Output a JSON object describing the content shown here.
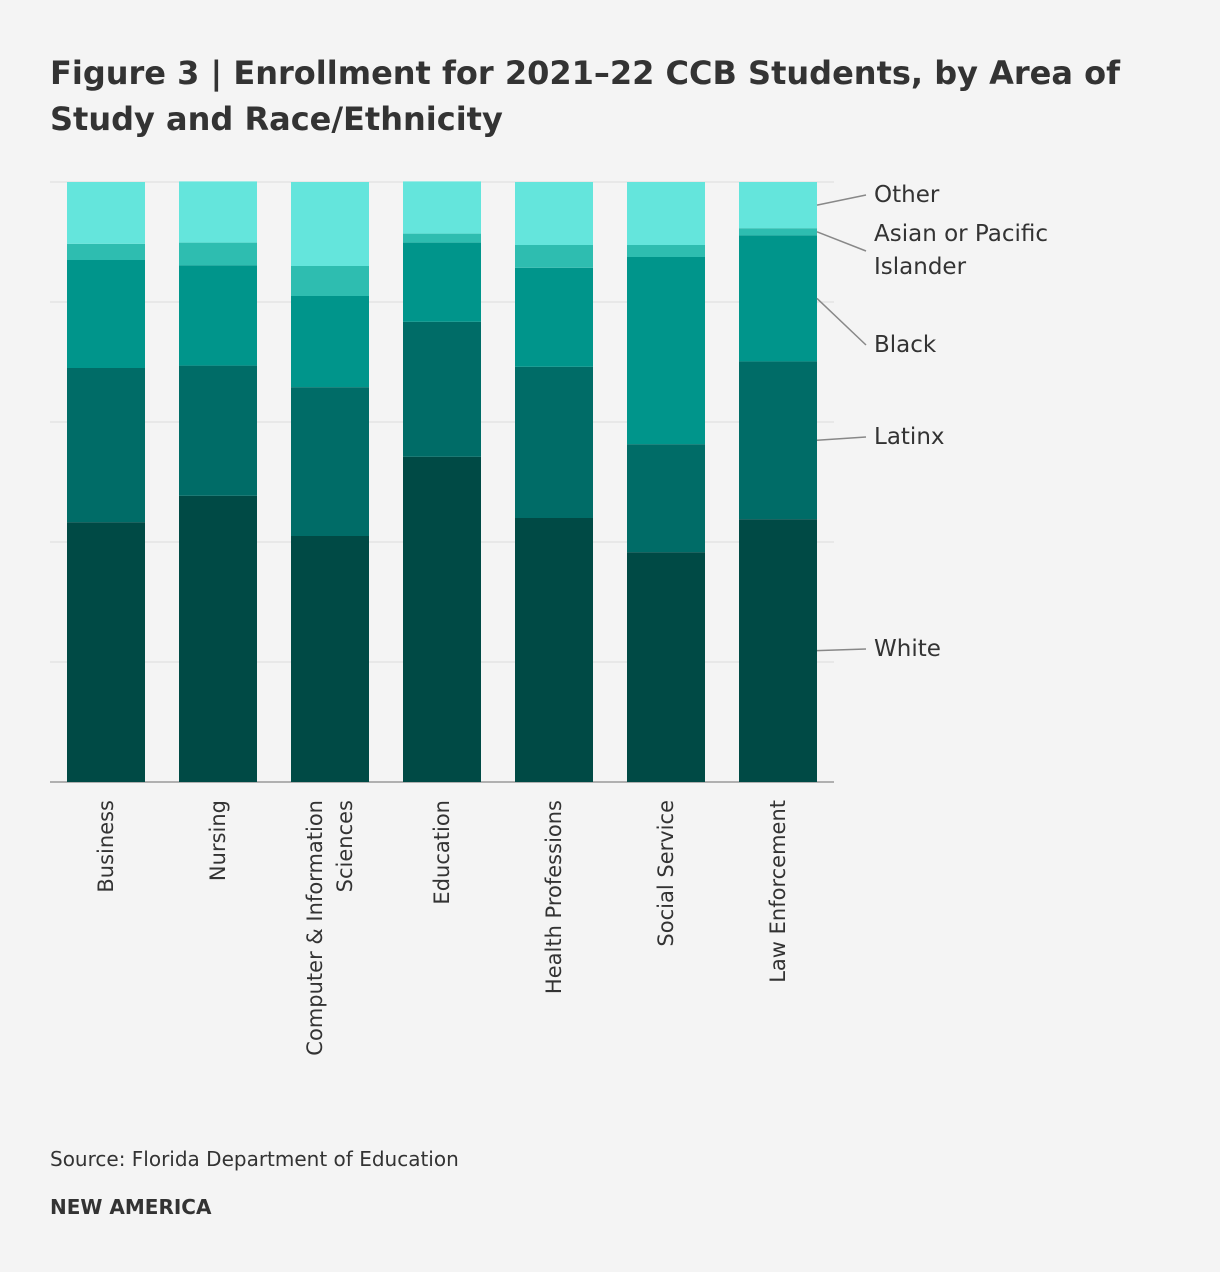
{
  "chart_data": {
    "type": "stacked_bar",
    "title": "Figure 3 | Enrollment for 2021–22 CCB Students, by Area of Study and Race/Ethnicity",
    "categories": [
      "Business",
      "Nursing",
      "Computer & Information Sciences",
      "Education",
      "Health Professions",
      "Social Service",
      "Law Enforcement"
    ],
    "series": [
      {
        "name": "White",
        "color": "#004a45",
        "values": [
          43.3,
          47.7,
          41,
          54.2,
          44,
          38.3,
          43.8
        ]
      },
      {
        "name": "Latinx",
        "color": "#006c67",
        "values": [
          25.7,
          21.7,
          24.8,
          22.5,
          25.2,
          18,
          26.3
        ]
      },
      {
        "name": "Black",
        "color": "#00958b",
        "values": [
          18,
          16.7,
          15.2,
          13.2,
          16.5,
          31.2,
          21
        ]
      },
      {
        "name": "Asian or Pacific Islander",
        "color": "#2ebdb0",
        "values": [
          2.7,
          3.8,
          5,
          1.5,
          3.8,
          2,
          1.2
        ]
      },
      {
        "name": "Other",
        "color": "#64e5dc",
        "values": [
          10.3,
          10.2,
          14,
          8.7,
          10.5,
          10.5,
          7.7
        ]
      }
    ],
    "ylim": [
      0,
      100
    ],
    "yticks": [
      0,
      20,
      40,
      60,
      80,
      100
    ],
    "grid": true,
    "source": "Source: Florida Department of Education",
    "brand": "NEW AMERICA"
  }
}
